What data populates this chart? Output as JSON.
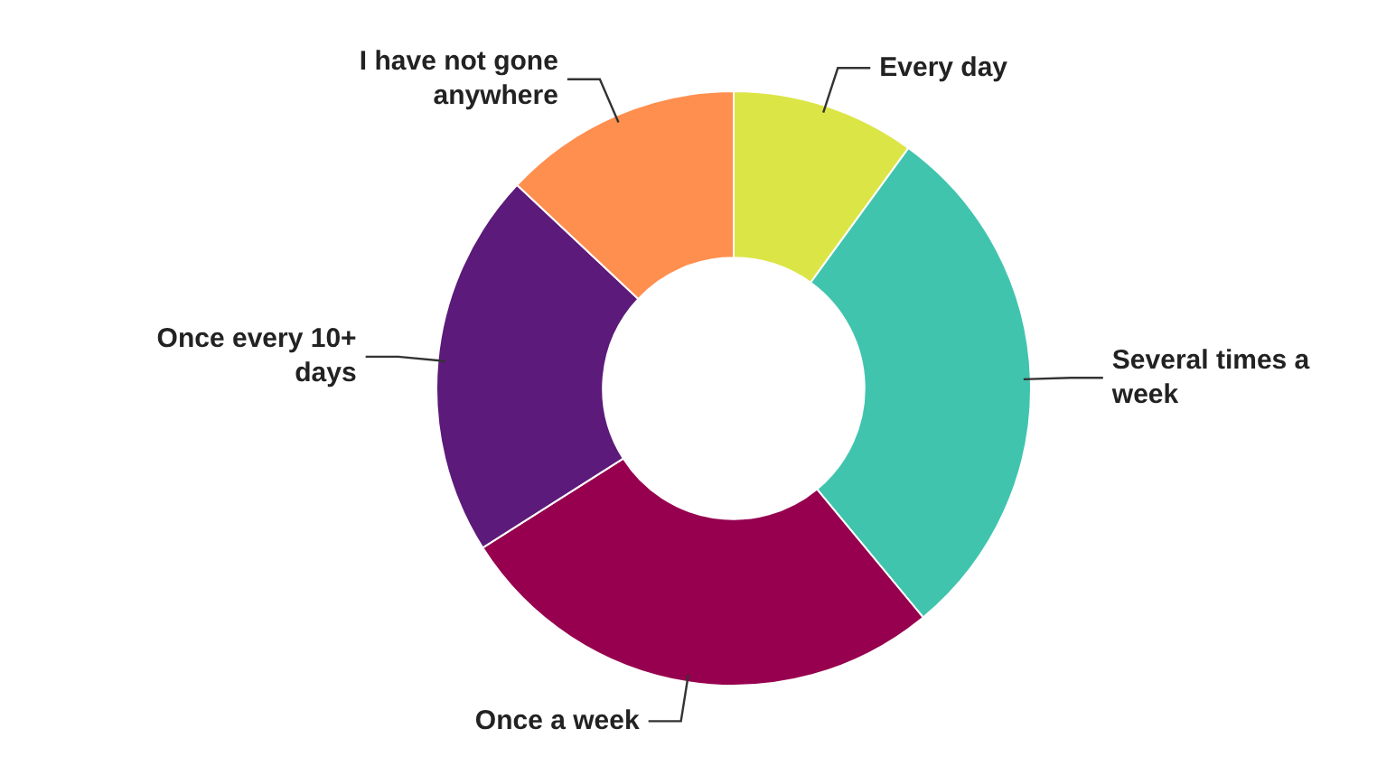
{
  "chart_data": {
    "type": "donut",
    "categories": [
      "Every day",
      "Several times a week",
      "Once a week",
      "Once every 10+ days",
      "I have not gone anywhere"
    ],
    "values": [
      10,
      29,
      27,
      21,
      13
    ],
    "colors": [
      "#dce546",
      "#41c4ae",
      "#96004f",
      "#5c1a7a",
      "#ff8f4f"
    ],
    "legend": false
  }
}
